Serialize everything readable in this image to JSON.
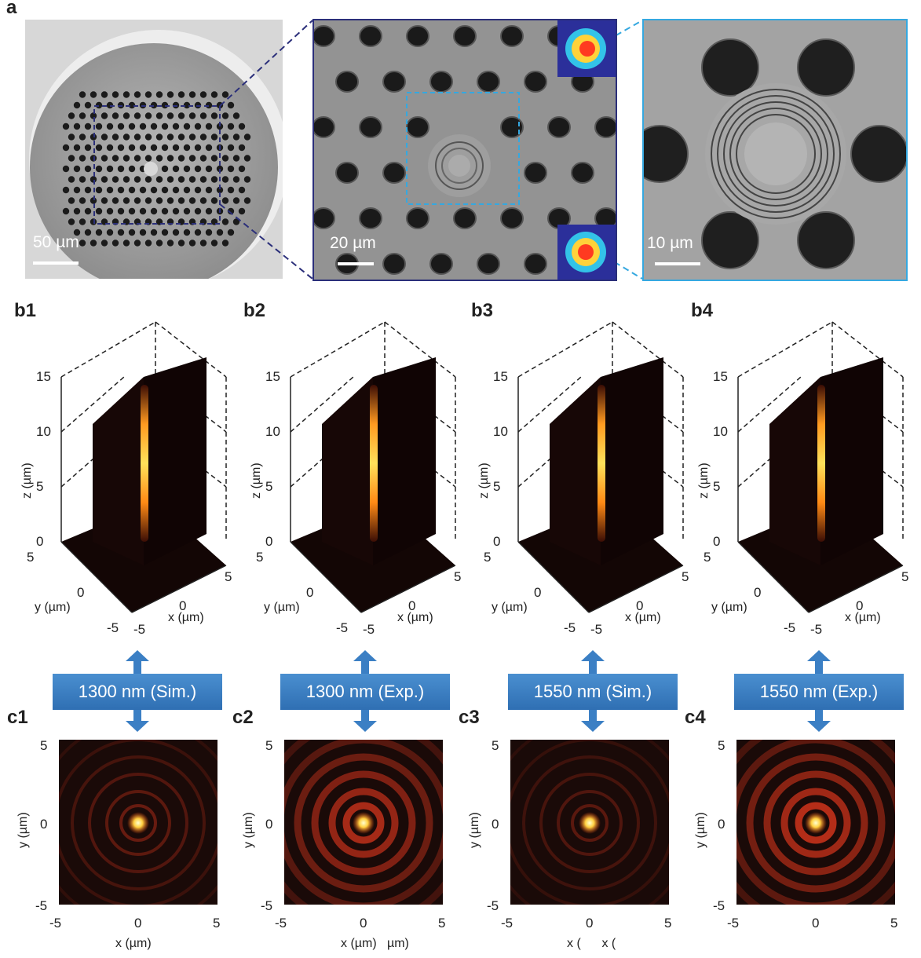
{
  "panel_a": {
    "letter": "a",
    "img1": {
      "scalebar": "50 µm"
    },
    "img2": {
      "scalebar": "20 µm"
    },
    "img3": {
      "scalebar": "10 µm"
    }
  },
  "b_panels": [
    {
      "letter": "b1"
    },
    {
      "letter": "b2"
    },
    {
      "letter": "b3"
    },
    {
      "letter": "b4"
    }
  ],
  "b_axes": {
    "z_ticks": [
      "15",
      "10",
      "5",
      "0"
    ],
    "z_label": "z (µm)",
    "y_ticks": [
      "5",
      "0",
      "-5"
    ],
    "y_label": "y (µm)",
    "x_ticks": [
      "-5",
      "0",
      "5"
    ],
    "x_label": "x (µm)"
  },
  "labels": [
    "1300 nm (Sim.)",
    "1300 nm (Exp.)",
    "1550 nm (Sim.)",
    "1550 nm (Exp.)"
  ],
  "c_panels": [
    {
      "letter": "c1",
      "x_label": "x (µm)"
    },
    {
      "letter": "c2",
      "x_label": "x (µm)   µm)"
    },
    {
      "letter": "c3",
      "x_label": "x (      x ("
    },
    {
      "letter": "c4",
      "x_label": ""
    }
  ],
  "c_axes": {
    "y_ticks": [
      "5",
      "0",
      "-5"
    ],
    "x_ticks": [
      "-5",
      "0",
      "5"
    ],
    "y_label": "y (µm)"
  },
  "colors": {
    "sem_frame_1": "#ffffff",
    "sem_frame_2": "#2b2f7a",
    "sem_frame_3": "#35a8e0",
    "label_box": "#3b7fc4",
    "heat_dark": "#1a0a08",
    "heat_hot": "#ffe060"
  },
  "icons": {
    "arrow": "double-vertical-arrow-icon"
  }
}
